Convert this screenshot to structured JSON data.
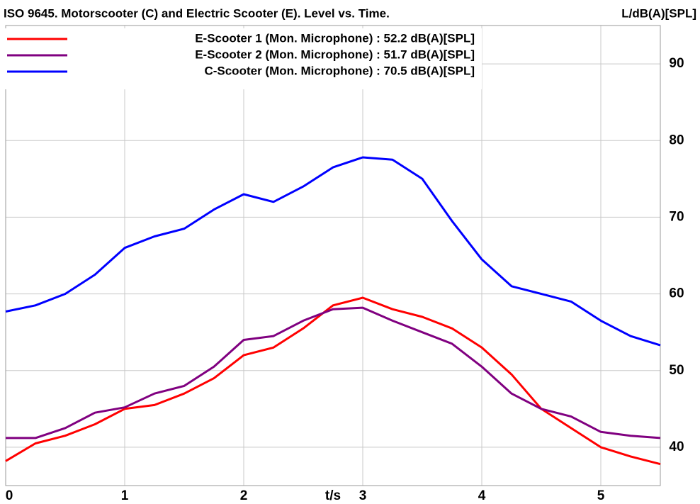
{
  "chart_data": {
    "type": "line",
    "title": "ISO 9645. Motorscooter (C) and Electric Scooter (E). Level vs. Time.",
    "x_label": "t/s",
    "y_label": "L/dB(A)[SPL]",
    "x": [
      0,
      0.25,
      0.5,
      0.75,
      1,
      1.25,
      1.5,
      1.75,
      2,
      2.25,
      2.5,
      2.75,
      3,
      3.25,
      3.5,
      3.75,
      4,
      4.25,
      4.5,
      4.75,
      5,
      5.25,
      5.5
    ],
    "series": [
      {
        "name": "E-Scooter 1 (Mon. Microphone) : 52.2 dB(A)[SPL]",
        "color": "#ff0000",
        "values": [
          38.2,
          40.5,
          41.5,
          43,
          45,
          45.5,
          47,
          49,
          52,
          53,
          55.5,
          58.5,
          59.5,
          58,
          57,
          55.5,
          53,
          49.5,
          45,
          42.5,
          40,
          38.8,
          37.8
        ]
      },
      {
        "name": "E-Scooter 2 (Mon. Microphone) : 51.7 dB(A)[SPL]",
        "color": "#800080",
        "values": [
          41.2,
          41.2,
          42.5,
          44.5,
          45.2,
          47,
          48,
          50.5,
          54,
          54.5,
          56.5,
          58,
          58.2,
          56.5,
          55,
          53.5,
          50.5,
          47,
          45,
          44,
          42,
          41.5,
          41.2
        ]
      },
      {
        "name": "C-Scooter (Mon. Microphone) : 70.5 dB(A)[SPL]",
        "color": "#0000ff",
        "values": [
          57.7,
          58.5,
          60,
          62.5,
          66,
          67.5,
          68.5,
          71,
          73,
          72,
          74,
          76.5,
          77.8,
          77.5,
          75,
          69.5,
          64.5,
          61,
          60,
          59,
          56.5,
          54.5,
          53.3
        ]
      }
    ],
    "xlim": [
      0,
      5.5
    ],
    "xticks": [
      0,
      1,
      2,
      3,
      4,
      5
    ],
    "ylim": [
      35,
      95
    ],
    "yticks": [
      40,
      50,
      60,
      70,
      80,
      90
    ],
    "grid": true,
    "legend": "upper left"
  }
}
